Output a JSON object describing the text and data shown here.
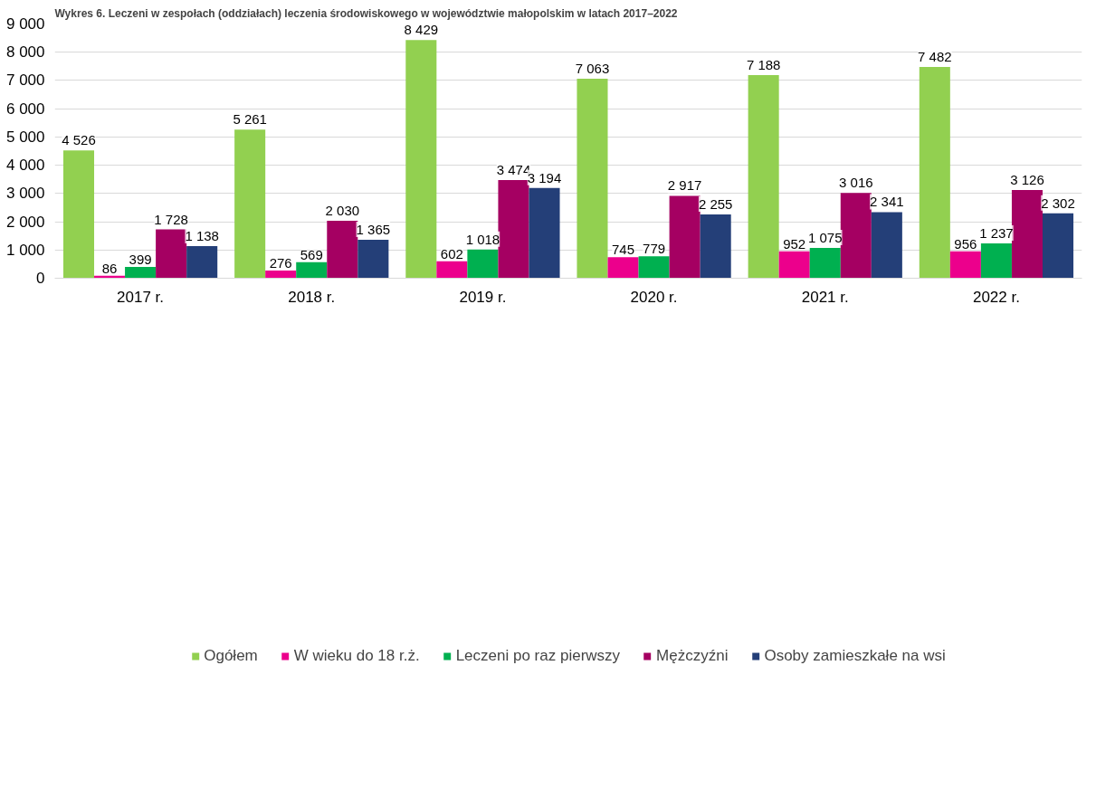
{
  "chart_data": {
    "type": "bar",
    "title": "Wykres 6. Leczeni w zespołach (oddziałach) leczenia środowiskowego w województwie małopolskim w latach 2017–2022",
    "categories": [
      "2017 r.",
      "2018 r.",
      "2019 r.",
      "2020 r.",
      "2021 r.",
      "2022 r."
    ],
    "series": [
      {
        "name": "Ogółem",
        "color": "#92d050",
        "values": [
          4526,
          5261,
          8429,
          7063,
          7188,
          7482
        ]
      },
      {
        "name": "W wieku do 18 r.ż.",
        "color": "#ec008c",
        "values": [
          86,
          276,
          602,
          745,
          952,
          956
        ]
      },
      {
        "name": "Leczeni po raz pierwszy",
        "color": "#00b050",
        "values": [
          399,
          569,
          1018,
          779,
          1075,
          1237
        ]
      },
      {
        "name": "Mężczyźni",
        "color": "#a50062",
        "values": [
          1728,
          2030,
          3474,
          2917,
          3016,
          3126
        ]
      },
      {
        "name": "Osoby zamieszkałe na wsi",
        "color": "#243f78",
        "values": [
          1138,
          1365,
          3194,
          2255,
          2341,
          2302
        ]
      }
    ],
    "ylim": [
      0,
      9000
    ],
    "yticks": [
      {
        "value": 0,
        "label": "0"
      },
      {
        "value": 1000,
        "label": "1 000"
      },
      {
        "value": 2000,
        "label": "2 000"
      },
      {
        "value": 3000,
        "label": "3 000"
      },
      {
        "value": 4000,
        "label": "4 000"
      },
      {
        "value": 5000,
        "label": "5 000"
      },
      {
        "value": 6000,
        "label": "6 000"
      },
      {
        "value": 7000,
        "label": "7 000"
      },
      {
        "value": 8000,
        "label": "8 000"
      },
      {
        "value": 9000,
        "label": "9 000"
      }
    ],
    "grid": "y",
    "legend": "bottom",
    "data_labels": true
  }
}
